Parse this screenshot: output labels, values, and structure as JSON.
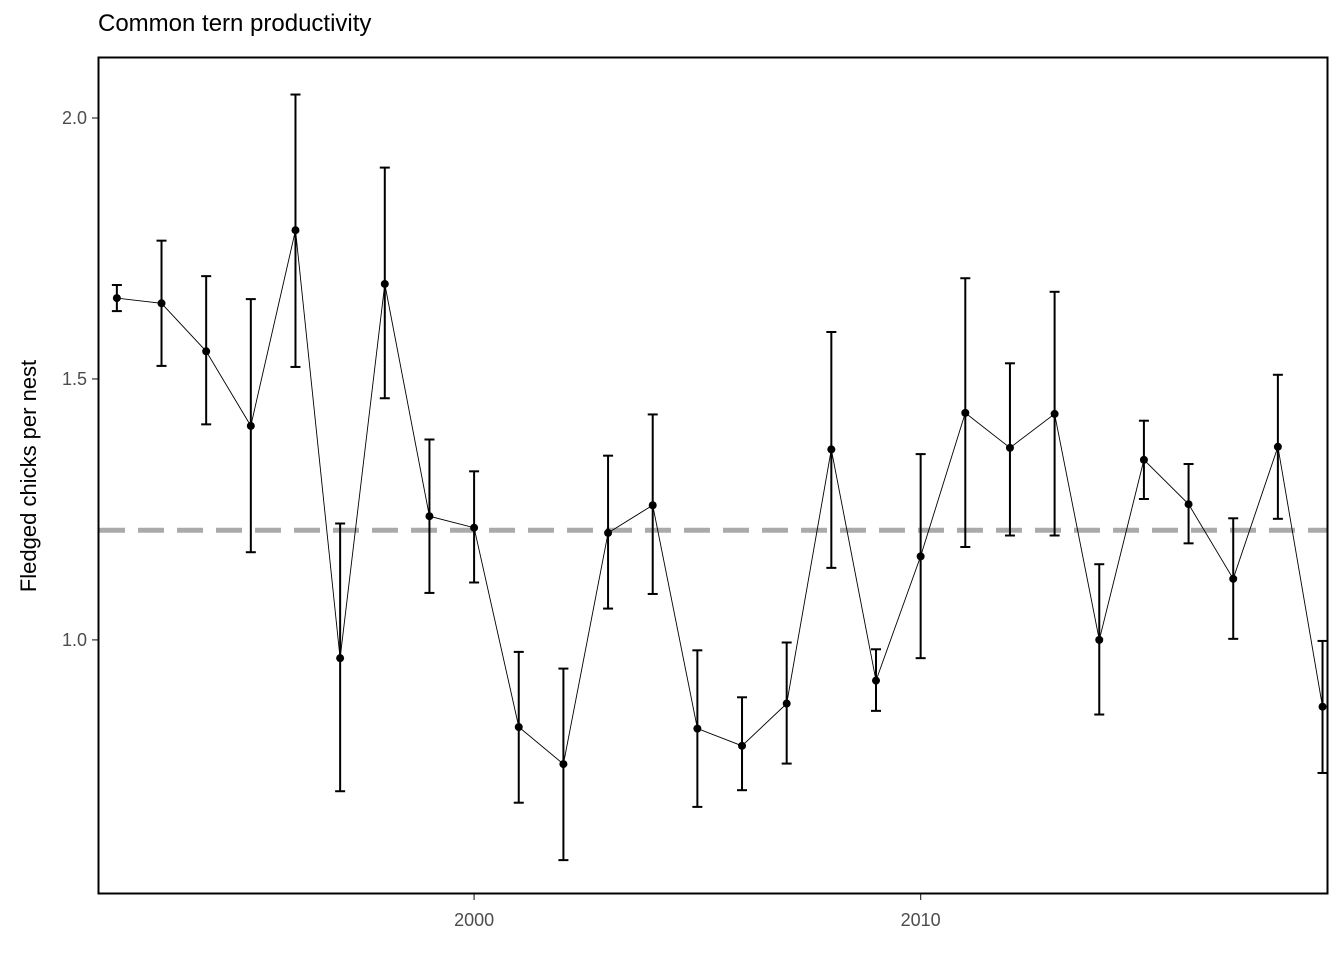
{
  "chart_data": {
    "type": "line",
    "title": "Common tern productivity",
    "xlabel": "",
    "ylabel": "Fledged chicks per nest",
    "xlim": [
      1991.6,
      2019.1
    ],
    "ylim": [
      0.515,
      2.115
    ],
    "x_ticks": [
      2000,
      2010
    ],
    "y_ticks": [
      1.0,
      1.5,
      2.0
    ],
    "grid": false,
    "reference_line": {
      "y": 1.21,
      "style": "dashed",
      "color": "#aaaaaa"
    },
    "series": [
      {
        "x": [
          1992,
          1993,
          1994,
          1995,
          1996,
          1997,
          1998,
          1999,
          2000,
          2001,
          2002,
          2003,
          2004,
          2005,
          2006,
          2007,
          2008,
          2009,
          2010,
          2011,
          2012,
          2013,
          2014,
          2015,
          2016,
          2017,
          2018,
          2019
        ],
        "values": [
          1.655,
          1.645,
          1.553,
          1.41,
          1.785,
          0.965,
          1.682,
          1.237,
          1.215,
          0.833,
          0.762,
          1.205,
          1.258,
          0.83,
          0.797,
          0.878,
          1.365,
          0.922,
          1.16,
          1.435,
          1.368,
          1.433,
          1.0,
          1.345,
          1.26,
          1.117,
          1.37,
          0.872
        ],
        "lower": [
          1.63,
          1.525,
          1.413,
          1.168,
          1.523,
          0.71,
          1.463,
          1.09,
          1.11,
          0.688,
          0.578,
          1.06,
          1.088,
          0.68,
          0.712,
          0.763,
          1.138,
          0.864,
          0.965,
          1.178,
          1.2,
          1.2,
          0.857,
          1.27,
          1.185,
          1.002,
          1.232,
          0.745
        ],
        "upper": [
          1.68,
          1.765,
          1.697,
          1.653,
          2.045,
          1.223,
          1.905,
          1.384,
          1.323,
          0.977,
          0.945,
          1.353,
          1.432,
          0.98,
          0.89,
          0.995,
          1.59,
          0.982,
          1.356,
          1.693,
          1.53,
          1.667,
          1.145,
          1.42,
          1.337,
          1.233,
          1.508,
          0.998
        ]
      }
    ],
    "colors": {
      "points": "#000000",
      "line": "#000000",
      "reference": "#aaaaaa",
      "axis_text": "#4d4d4d"
    }
  }
}
